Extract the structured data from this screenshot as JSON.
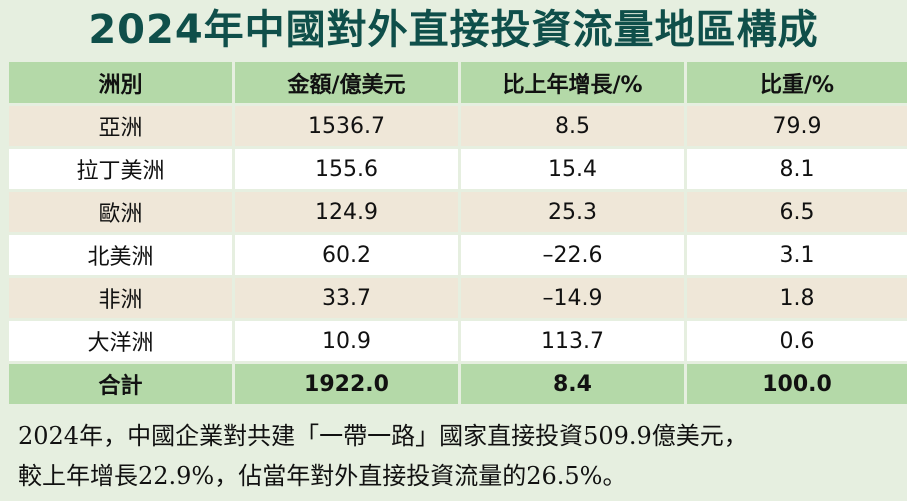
{
  "title": "2024年中國對外直接投資流量地區構成",
  "chart_data": {
    "type": "table",
    "columns": [
      "洲別",
      "金額/億美元",
      "比上年增長/%",
      "比重/%"
    ],
    "rows": [
      [
        "亞洲",
        "1536.7",
        "8.5",
        "79.9"
      ],
      [
        "拉丁美洲",
        "155.6",
        "15.4",
        "8.1"
      ],
      [
        "歐洲",
        "124.9",
        "25.3",
        "6.5"
      ],
      [
        "北美洲",
        "60.2",
        "–22.6",
        "3.1"
      ],
      [
        "非洲",
        "33.7",
        "–14.9",
        "1.8"
      ],
      [
        "大洋洲",
        "10.9",
        "113.7",
        "0.6"
      ]
    ],
    "total": [
      "合計",
      "1922.0",
      "8.4",
      "100.0"
    ]
  },
  "footnote": {
    "line1": "2024年，中國企業對共建「一帶一路」國家直接投資509.9億美元，",
    "line2": "較上年增長22.9%，佔當年對外直接投資流量的26.5%。"
  },
  "colors": {
    "background": "#e6efe0",
    "header": "#b4d9a8",
    "row_odd": "#efe7d8",
    "row_even": "#ffffff",
    "title": "#0f4f4a"
  }
}
